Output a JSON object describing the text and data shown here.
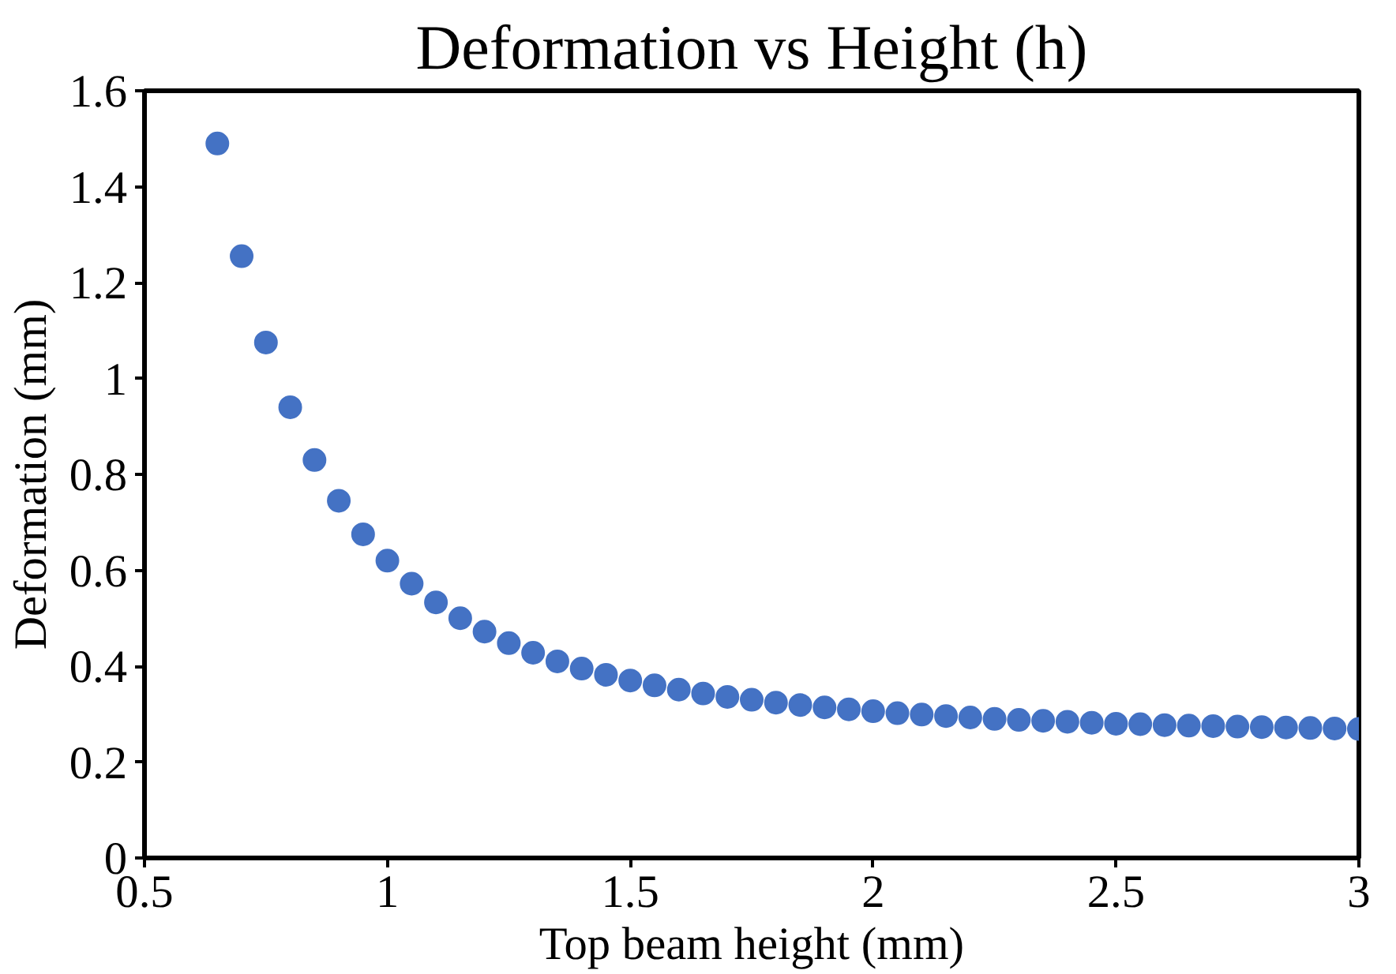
{
  "chart_data": {
    "type": "scatter",
    "title": "Deformation vs Height (h)",
    "xlabel": "Top beam height (mm)",
    "ylabel": "Deformation (mm)",
    "x": [
      0.65,
      0.7,
      0.75,
      0.8,
      0.85,
      0.9,
      0.95,
      1.0,
      1.05,
      1.1,
      1.15,
      1.2,
      1.25,
      1.3,
      1.35,
      1.4,
      1.45,
      1.5,
      1.55,
      1.6,
      1.65,
      1.7,
      1.75,
      1.8,
      1.85,
      1.9,
      1.95,
      2.0,
      2.05,
      2.1,
      2.15,
      2.2,
      2.25,
      2.3,
      2.35,
      2.4,
      2.45,
      2.5,
      2.55,
      2.6,
      2.65,
      2.7,
      2.75,
      2.8,
      2.85,
      2.9,
      2.95,
      3.0
    ],
    "series": [
      {
        "color": "#4472c4",
        "values": [
          1.49,
          1.255,
          1.075,
          0.94,
          0.83,
          0.745,
          0.675,
          0.62,
          0.572,
          0.533,
          0.5,
          0.472,
          0.448,
          0.428,
          0.41,
          0.395,
          0.382,
          0.37,
          0.36,
          0.351,
          0.343,
          0.336,
          0.33,
          0.324,
          0.319,
          0.314,
          0.31,
          0.306,
          0.302,
          0.299,
          0.296,
          0.293,
          0.29,
          0.288,
          0.286,
          0.284,
          0.282,
          0.28,
          0.279,
          0.277,
          0.276,
          0.275,
          0.274,
          0.273,
          0.272,
          0.271,
          0.27,
          0.269
        ]
      }
    ],
    "xlim": [
      0.5,
      3
    ],
    "xticks": [
      0.5,
      1,
      1.5,
      2,
      2.5,
      3
    ],
    "ylim": [
      0,
      1.6
    ],
    "yticks": [
      0,
      0.2,
      0.4,
      0.6,
      0.8,
      1,
      1.2,
      1.4,
      1.6
    ],
    "grid": false,
    "marker": "circle"
  }
}
